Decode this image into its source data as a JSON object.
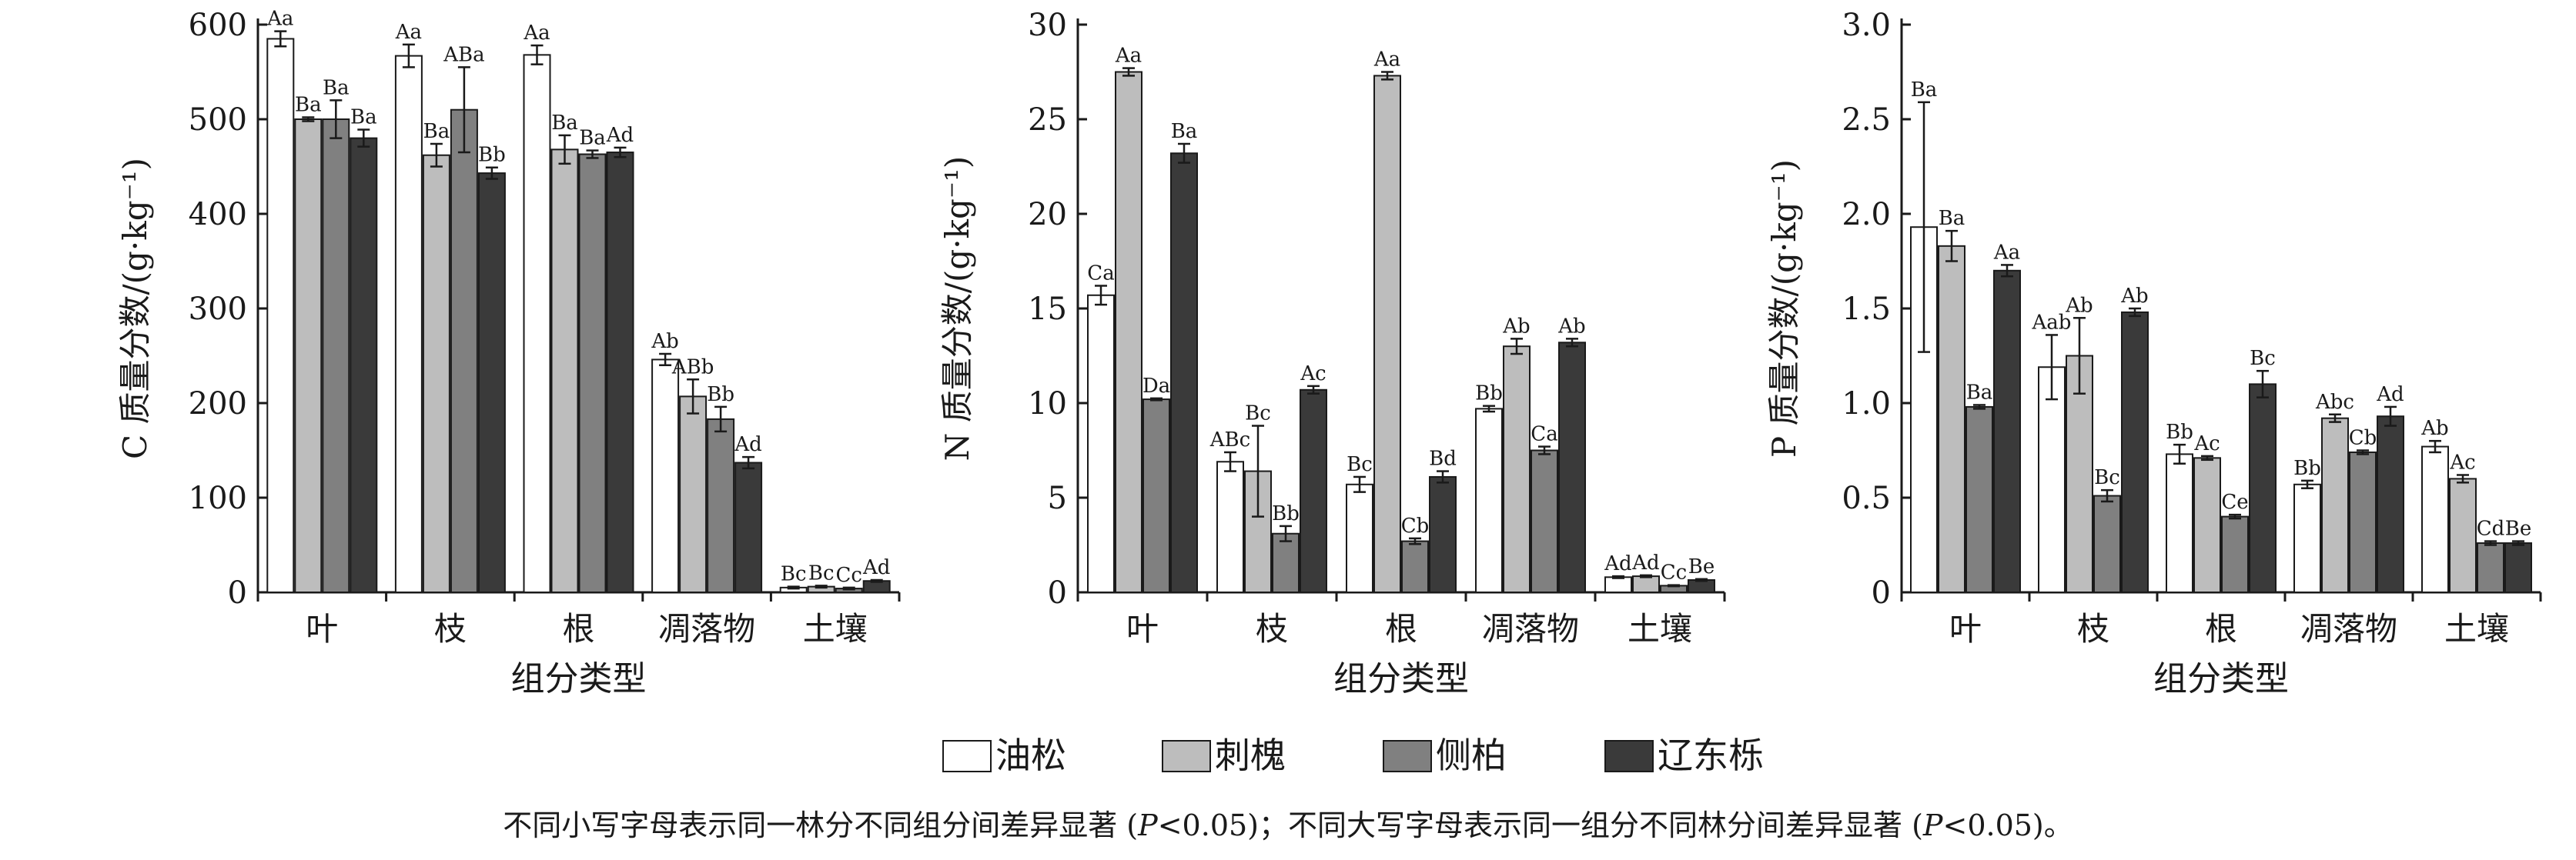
{
  "legend": [
    {
      "name": "油松",
      "color": "#ffffff"
    },
    {
      "name": "刺槐",
      "color": "#bdbdbd"
    },
    {
      "name": "侧柏",
      "color": "#808080"
    },
    {
      "name": "辽东栎",
      "color": "#3a3a3a"
    }
  ],
  "note": {
    "part1": "不同小写字母表示同一林分不同组分间差异显著 (",
    "p1": "P",
    "part2": "<0.05)；不同大写字母表示同一组分不同林分间差异显著 (",
    "p2": "P",
    "part3": "<0.05)。"
  },
  "chart_data": [
    {
      "type": "bar",
      "ylabel": "C 质量分数/(g·kg⁻¹)",
      "xlabel": "组分类型",
      "ylim": [
        0,
        600
      ],
      "yticks": [
        "0",
        "100",
        "200",
        "300",
        "400",
        "500",
        "600"
      ],
      "categories": [
        "叶",
        "枝",
        "根",
        "凋落物",
        "土壤"
      ],
      "series": [
        {
          "name": "油松",
          "values": [
            585,
            567,
            568,
            246,
            5
          ],
          "errors": [
            8,
            12,
            10,
            6,
            1
          ],
          "labels": [
            "Aa",
            "Aa",
            "Aa",
            "Ab",
            "Bc"
          ]
        },
        {
          "name": "刺槐",
          "values": [
            500,
            462,
            468,
            207,
            6
          ],
          "errors": [
            2,
            12,
            15,
            18,
            1
          ],
          "labels": [
            "Ba",
            "Ba",
            "Ba",
            "ABb",
            "Bc"
          ]
        },
        {
          "name": "侧柏",
          "values": [
            500,
            510,
            463,
            183,
            4
          ],
          "errors": [
            20,
            45,
            4,
            13,
            1
          ],
          "labels": [
            "Ba",
            "ABa",
            "Ba",
            "Bb",
            "Cc"
          ]
        },
        {
          "name": "辽东栎",
          "values": [
            480,
            443,
            465,
            137,
            12
          ],
          "errors": [
            9,
            6,
            5,
            6,
            1
          ],
          "labels": [
            "Ba",
            "Bb",
            "Ad",
            "Ad",
            "Ad"
          ]
        }
      ]
    },
    {
      "type": "bar",
      "ylabel": "N 质量分数/(g·kg⁻¹)",
      "xlabel": "组分类型",
      "ylim": [
        0,
        30
      ],
      "yticks": [
        "0",
        "5",
        "10",
        "15",
        "20",
        "25",
        "30"
      ],
      "categories": [
        "叶",
        "枝",
        "根",
        "凋落物",
        "土壤"
      ],
      "series": [
        {
          "name": "油松",
          "values": [
            15.7,
            6.9,
            5.7,
            9.7,
            0.8
          ],
          "errors": [
            0.5,
            0.5,
            0.4,
            0.15,
            0.05
          ],
          "labels": [
            "Ca",
            "ABc",
            "Bc",
            "Bb",
            "Ad"
          ]
        },
        {
          "name": "刺槐",
          "values": [
            27.5,
            6.4,
            27.3,
            13.0,
            0.85
          ],
          "errors": [
            0.2,
            2.4,
            0.2,
            0.4,
            0.05
          ],
          "labels": [
            "Aa",
            "Bc",
            "Aa",
            "Ab",
            "Ad"
          ]
        },
        {
          "name": "侧柏",
          "values": [
            10.2,
            3.1,
            2.7,
            7.5,
            0.35
          ],
          "errors": [
            0.05,
            0.4,
            0.15,
            0.2,
            0.03
          ],
          "labels": [
            "Da",
            "Bb",
            "Cb",
            "Ca",
            "Cc"
          ]
        },
        {
          "name": "辽东栎",
          "values": [
            23.2,
            10.7,
            6.1,
            13.2,
            0.65
          ],
          "errors": [
            0.5,
            0.2,
            0.3,
            0.2,
            0.05
          ],
          "labels": [
            "Ba",
            "Ac",
            "Bd",
            "Ab",
            "Be"
          ]
        }
      ]
    },
    {
      "type": "bar",
      "ylabel": "P 质量分数/(g·kg⁻¹)",
      "xlabel": "组分类型",
      "ylim": [
        0,
        3.0
      ],
      "yticks": [
        "0",
        "0.5",
        "1.0",
        "1.5",
        "2.0",
        "2.5",
        "3.0"
      ],
      "categories": [
        "叶",
        "枝",
        "根",
        "凋落物",
        "土壤"
      ],
      "series": [
        {
          "name": "油松",
          "values": [
            1.93,
            1.19,
            0.73,
            0.57,
            0.77
          ],
          "errors": [
            0.66,
            0.17,
            0.05,
            0.02,
            0.03
          ],
          "labels": [
            "Ba",
            "Aab",
            "Bb",
            "Bb",
            "Ab"
          ]
        },
        {
          "name": "刺槐",
          "values": [
            1.83,
            1.25,
            0.71,
            0.92,
            0.6
          ],
          "errors": [
            0.08,
            0.2,
            0.01,
            0.02,
            0.02
          ],
          "labels": [
            "Ba",
            "Ab",
            "Ac",
            "Abc",
            "Ac"
          ]
        },
        {
          "name": "侧柏",
          "values": [
            0.98,
            0.51,
            0.4,
            0.74,
            0.26
          ],
          "errors": [
            0.01,
            0.03,
            0.01,
            0.01,
            0.01
          ],
          "labels": [
            "Ba",
            "Bc",
            "Ce",
            "Cb",
            "Cd"
          ]
        },
        {
          "name": "辽东栎",
          "values": [
            1.7,
            1.48,
            1.1,
            0.93,
            0.26
          ],
          "errors": [
            0.03,
            0.02,
            0.07,
            0.05,
            0.01
          ],
          "labels": [
            "Aa",
            "Ab",
            "Bc",
            "Ad",
            "Be"
          ]
        }
      ]
    }
  ]
}
